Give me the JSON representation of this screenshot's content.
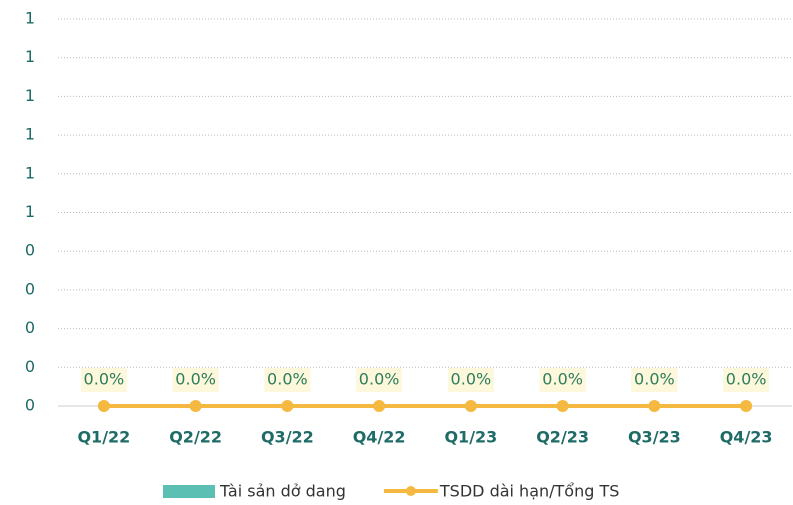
{
  "chart_data": {
    "type": "bar",
    "categories": [
      "Q1/22",
      "Q2/22",
      "Q3/22",
      "Q4/22",
      "Q1/23",
      "Q2/23",
      "Q3/23",
      "Q4/23"
    ],
    "series": [
      {
        "name": "Tài sản dở dang",
        "type": "bar",
        "color": "#5cbfb4",
        "values": [
          0,
          0,
          0,
          0,
          0,
          0,
          0,
          0
        ]
      },
      {
        "name": "TSDD dài hạn/Tổng TS",
        "type": "line",
        "color": "#f5b942",
        "values": [
          0,
          0,
          0,
          0,
          0,
          0,
          0,
          0
        ],
        "value_labels": [
          "0.0%",
          "0.0%",
          "0.0%",
          "0.0%",
          "0.0%",
          "0.0%",
          "0.0%",
          "0.0%"
        ]
      }
    ],
    "ylim": [
      0,
      1
    ],
    "yticks": [
      0,
      {
        "value": 0.1,
        "label": "0"
      },
      {
        "value": 0.2,
        "label": "0"
      },
      {
        "value": 0.3,
        "label": "0"
      },
      {
        "value": 0.4,
        "label": "0"
      },
      {
        "value": 0.5,
        "label": "1"
      },
      {
        "value": 0.6,
        "label": "1"
      },
      {
        "value": 0.7,
        "label": "1"
      },
      {
        "value": 0.8,
        "label": "1"
      },
      {
        "value": 0.9,
        "label": "1"
      },
      {
        "value": 1,
        "label": "1"
      }
    ],
    "grid": true,
    "legend": "bottom"
  }
}
